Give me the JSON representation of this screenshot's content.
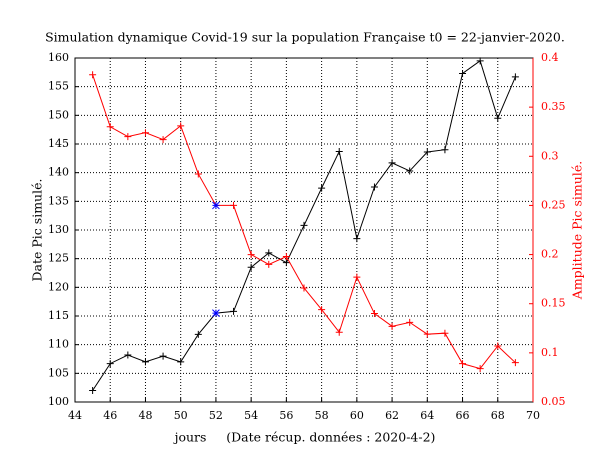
{
  "chart_data": {
    "type": "line",
    "title": "Simulation dynamique Covid-19 sur la population Française t0 = 22-janvier-2020.",
    "x_label": "jours     (Date récup. données : 2020-4-2)",
    "y_label": "Date Pic simulé.",
    "y2_label": "Amplitude Pic simulé.",
    "x": [
      45,
      46,
      47,
      48,
      49,
      50,
      51,
      52,
      53,
      54,
      55,
      56,
      57,
      58,
      59,
      60,
      61,
      62,
      63,
      64,
      65,
      66,
      67,
      68,
      69
    ],
    "series": [
      {
        "color": "#000000",
        "values": [
          102,
          106.7,
          108.2,
          107,
          108,
          107,
          111.8,
          115.5,
          115.8,
          123.5,
          126,
          124.3,
          130.8,
          137.3,
          143.7,
          128.5,
          137.5,
          141.7,
          140.3,
          143.6,
          144,
          157.3,
          159.5,
          149.5,
          156.7
        ]
      },
      {
        "color": "#ff0000",
        "axis": "y2",
        "values": [
          0.383,
          0.33,
          0.32,
          0.324,
          0.317,
          0.331,
          0.282,
          0.25,
          0.25,
          0.2,
          0.19,
          0.198,
          0.166,
          0.144,
          0.121,
          0.177,
          0.14,
          0.127,
          0.131,
          0.119,
          0.12,
          0.089,
          0.084,
          0.107,
          0.09
        ]
      }
    ],
    "highlight_x": 52,
    "highlight_color": "#0000ff",
    "xlim": [
      44,
      70
    ],
    "xticks": [
      44,
      46,
      48,
      50,
      52,
      54,
      56,
      58,
      60,
      62,
      64,
      66,
      68,
      70
    ],
    "ylim": [
      100,
      160
    ],
    "yticks": [
      100,
      105,
      110,
      115,
      120,
      125,
      130,
      135,
      140,
      145,
      150,
      155,
      160
    ],
    "y2lim": [
      0.05,
      0.4
    ],
    "y2ticks": [
      0.05,
      0.1,
      0.15,
      0.2,
      0.25,
      0.3,
      0.35,
      0.4
    ],
    "y2_color": "#ff0000",
    "grid": true
  }
}
